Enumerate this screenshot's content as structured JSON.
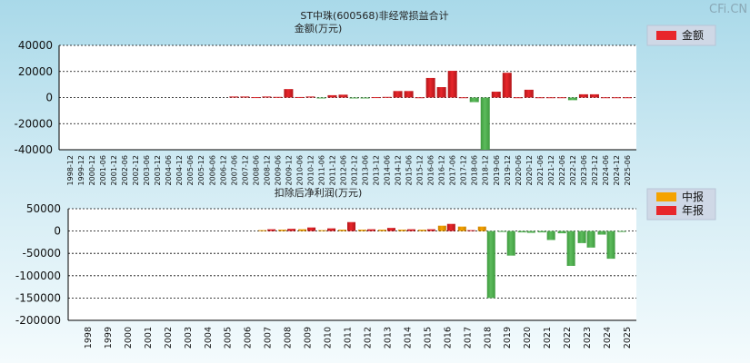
{
  "watermark": "CFi.CN",
  "colors": {
    "red": "#e8262b",
    "orange": "#f5a300",
    "green": "#3f9b3f",
    "grid": "#000000"
  },
  "chart_data": [
    {
      "type": "bar",
      "title": "ST中珠(600568)非经常损益合计",
      "ylabel": "金额(万元)",
      "ylim": [
        -40000,
        40000
      ],
      "yticks": [
        40000,
        20000,
        0,
        -20000,
        -40000
      ],
      "legend": {
        "position": "top-right",
        "entries": [
          "金额"
        ]
      },
      "categories": [
        "1998-12",
        "1999-12",
        "2000-12",
        "2001-06",
        "2001-12",
        "2002-06",
        "2002-12",
        "2003-06",
        "2003-12",
        "2004-06",
        "2004-12",
        "2005-06",
        "2005-12",
        "2006-06",
        "2006-12",
        "2007-06",
        "2007-12",
        "2008-06",
        "2008-12",
        "2009-06",
        "2009-12",
        "2010-06",
        "2010-12",
        "2011-06",
        "2011-12",
        "2012-06",
        "2012-12",
        "2013-06",
        "2013-12",
        "2014-06",
        "2014-12",
        "2015-06",
        "2015-12",
        "2016-06",
        "2016-12",
        "2017-06",
        "2017-12",
        "2018-06",
        "2018-12",
        "2019-06",
        "2019-12",
        "2020-06",
        "2020-12",
        "2021-06",
        "2021-12",
        "2022-06",
        "2022-12",
        "2023-06",
        "2023-12",
        "2024-06",
        "2024-12",
        "2025-06"
      ],
      "values": [
        0,
        0,
        0,
        0,
        0,
        0,
        0,
        0,
        0,
        0,
        0,
        0,
        0,
        0,
        0,
        800,
        800,
        300,
        800,
        500,
        6500,
        400,
        800,
        -400,
        1800,
        2200,
        -300,
        -500,
        300,
        500,
        5000,
        5000,
        200,
        15000,
        8000,
        20500,
        200,
        -3500,
        -40000,
        4500,
        19000,
        200,
        6000,
        200,
        200,
        200,
        -2000,
        2500,
        2500,
        200,
        200,
        200
      ]
    },
    {
      "type": "bar",
      "title": "扣除后净利润(万元)",
      "ylim": [
        -200000,
        50000
      ],
      "yticks": [
        50000,
        0,
        -50000,
        -100000,
        -150000,
        -200000
      ],
      "legend": {
        "position": "top-right",
        "entries": [
          "中报",
          "年报"
        ]
      },
      "categories": [
        "1998",
        "1999",
        "2000",
        "2001",
        "2002",
        "2003",
        "2004",
        "2005",
        "2006",
        "2007",
        "2008",
        "2009",
        "2010",
        "2011",
        "2012",
        "2013",
        "2014",
        "2015",
        "2016",
        "2017",
        "2018",
        "2019",
        "2020",
        "2021",
        "2022",
        "2023",
        "2024",
        "2025"
      ],
      "series": [
        {
          "name": "中报",
          "values": [
            0,
            0,
            0,
            0,
            0,
            0,
            0,
            0,
            0,
            2000,
            3000,
            4000,
            2000,
            3000,
            3000,
            3000,
            3000,
            3000,
            12000,
            10000,
            10000,
            -1000,
            -3000,
            -3000,
            -5000,
            -27000,
            -8000,
            -500
          ]
        },
        {
          "name": "年报",
          "values": [
            0,
            0,
            0,
            0,
            0,
            0,
            0,
            0,
            0,
            4000,
            5000,
            8000,
            6000,
            20000,
            4000,
            7000,
            4000,
            4000,
            16000,
            2000,
            -150000,
            -55000,
            -4000,
            -20000,
            -78000,
            -37000,
            -62000,
            null
          ]
        }
      ]
    }
  ]
}
